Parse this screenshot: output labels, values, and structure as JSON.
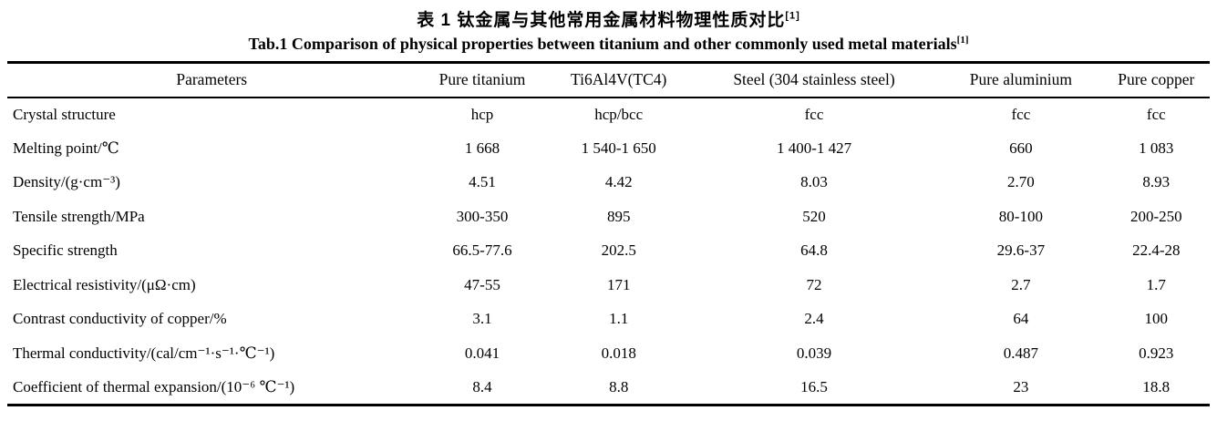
{
  "titles": {
    "zh": "表 1  钛金属与其他常用金属材料物理性质对比",
    "zh_ref": "[1]",
    "en": "Tab.1 Comparison of physical properties between titanium and other commonly used metal materials",
    "en_ref": "[1]"
  },
  "table": {
    "columns": [
      "Parameters",
      "Pure titanium",
      "Ti6Al4V(TC4)",
      "Steel (304 stainless steel)",
      "Pure aluminium",
      "Pure copper"
    ],
    "rows": [
      {
        "param": "Crystal structure",
        "values": [
          "hcp",
          "hcp/bcc",
          "fcc",
          "fcc",
          "fcc"
        ]
      },
      {
        "param": "Melting point/℃",
        "values": [
          "1 668",
          "1 540-1 650",
          "1 400-1 427",
          "660",
          "1 083"
        ]
      },
      {
        "param": "Density/(g·cm⁻³)",
        "values": [
          "4.51",
          "4.42",
          "8.03",
          "2.70",
          "8.93"
        ]
      },
      {
        "param": "Tensile strength/MPa",
        "values": [
          "300-350",
          "895",
          "520",
          "80-100",
          "200-250"
        ]
      },
      {
        "param": "Specific strength",
        "values": [
          "66.5-77.6",
          "202.5",
          "64.8",
          "29.6-37",
          "22.4-28"
        ]
      },
      {
        "param": "Electrical resistivity/(μΩ·cm)",
        "values": [
          "47-55",
          "171",
          "72",
          "2.7",
          "1.7"
        ]
      },
      {
        "param": "Contrast conductivity of copper/%",
        "values": [
          "3.1",
          "1.1",
          "2.4",
          "64",
          "100"
        ]
      },
      {
        "param": "Thermal conductivity/(cal/cm⁻¹·s⁻¹·℃⁻¹)",
        "values": [
          "0.041",
          "0.018",
          "0.039",
          "0.487",
          "0.923"
        ]
      },
      {
        "param": "Coefficient of thermal expansion/(10⁻⁶ ℃⁻¹)",
        "values": [
          "8.4",
          "8.8",
          "16.5",
          "23",
          "18.8"
        ]
      }
    ]
  }
}
